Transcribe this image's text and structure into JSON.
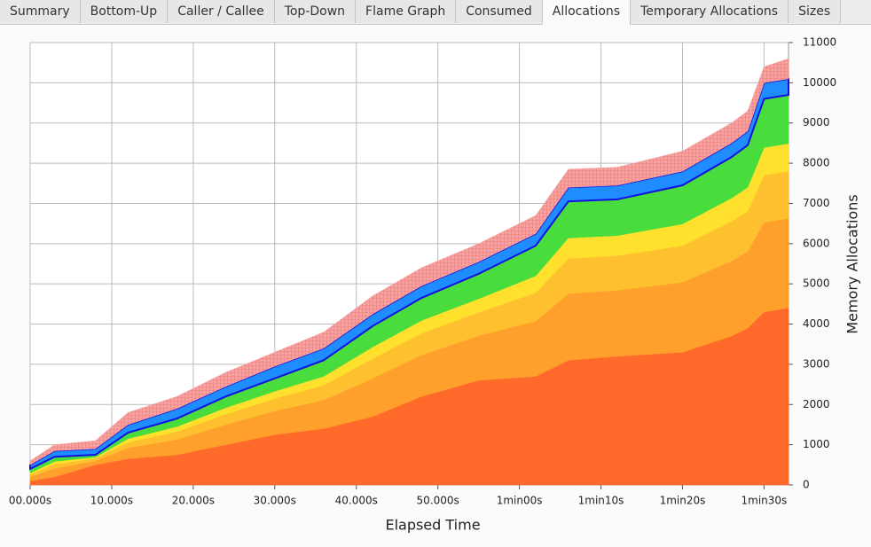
{
  "tabs": [
    "Summary",
    "Bottom-Up",
    "Caller / Callee",
    "Top-Down",
    "Flame Graph",
    "Consumed",
    "Allocations",
    "Temporary Allocations",
    "Sizes"
  ],
  "active_tab": 6,
  "chart_data": {
    "type": "stacked-area",
    "x_label": "Elapsed Time",
    "y_label": "Memory Allocations",
    "x": [
      0,
      3,
      8,
      12,
      18,
      24,
      30,
      36,
      42,
      48,
      55,
      62,
      66,
      72,
      80,
      86,
      88,
      90,
      93
    ],
    "xlim": [
      0,
      93
    ],
    "xticks": [
      {
        "value": 0,
        "label": "00.000s"
      },
      {
        "value": 10,
        "label": "10.000s"
      },
      {
        "value": 20,
        "label": "20.000s"
      },
      {
        "value": 30,
        "label": "30.000s"
      },
      {
        "value": 40,
        "label": "40.000s"
      },
      {
        "value": 50,
        "label": "50.000s"
      },
      {
        "value": 60,
        "label": "1min00s"
      },
      {
        "value": 70,
        "label": "1min10s"
      },
      {
        "value": 80,
        "label": "1min20s"
      },
      {
        "value": 90,
        "label": "1min30s"
      }
    ],
    "ylim": [
      0,
      11000
    ],
    "yticks": [
      0,
      1000,
      2000,
      3000,
      4000,
      5000,
      6000,
      7000,
      8000,
      9000,
      10000,
      11000
    ],
    "grid": true,
    "series": [
      {
        "color": "#ff6a2a",
        "values": [
          100,
          200,
          500,
          650,
          750,
          1000,
          1250,
          1400,
          1700,
          2200,
          2600,
          2700,
          3100,
          3200,
          3300,
          3700,
          3900,
          4300,
          4400
        ]
      },
      {
        "color": "#ff9f2c",
        "values": [
          100,
          210,
          100,
          270,
          380,
          500,
          590,
          710,
          950,
          1030,
          1110,
          1370,
          1660,
          1640,
          1740,
          1870,
          1910,
          2230,
          2230
        ]
      },
      {
        "color": "#ffc030",
        "values": [
          60,
          110,
          60,
          140,
          200,
          260,
          310,
          370,
          490,
          540,
          580,
          710,
          870,
          860,
          910,
          980,
          1000,
          1170,
          1170
        ]
      },
      {
        "color": "#ffe02c",
        "values": [
          40,
          65,
          30,
          90,
          120,
          160,
          180,
          220,
          290,
          320,
          340,
          420,
          510,
          500,
          540,
          580,
          590,
          690,
          690
        ]
      },
      {
        "color": "#48dc3c",
        "values": [
          100,
          115,
          60,
          150,
          200,
          280,
          320,
          400,
          520,
          560,
          620,
          750,
          910,
          900,
          960,
          1020,
          1050,
          1210,
          1210
        ]
      },
      {
        "color": "#1f8cff",
        "values": [
          100,
          150,
          150,
          200,
          250,
          250,
          300,
          300,
          300,
          300,
          300,
          300,
          350,
          350,
          350,
          350,
          350,
          400,
          400
        ]
      },
      {
        "color": "#f5a3a0",
        "values": [
          100,
          150,
          200,
          300,
          300,
          350,
          350,
          400,
          450,
          450,
          450,
          450,
          450,
          450,
          500,
          500,
          500,
          400,
          500
        ]
      }
    ]
  }
}
